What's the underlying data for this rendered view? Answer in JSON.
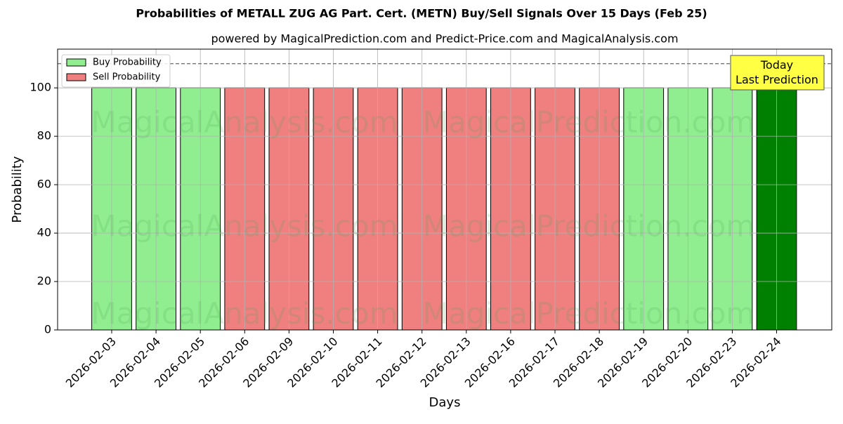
{
  "chart_data": {
    "type": "bar",
    "stacked": true,
    "title": "Probabilities of METALL ZUG AG Part. Cert. (METN) Buy/Sell Signals Over 15 Days (Feb 25)",
    "subtitle": "powered by MagicalPrediction.com and Predict-Price.com and MagicalAnalysis.com",
    "x_label": "Days",
    "y_label": "Probability",
    "categories": [
      "2026-02-03",
      "2026-02-04",
      "2026-02-05",
      "2026-02-06",
      "2026-02-09",
      "2026-02-10",
      "2026-02-11",
      "2026-02-12",
      "2026-02-13",
      "2026-02-16",
      "2026-02-17",
      "2026-02-18",
      "2026-02-19",
      "2026-02-20",
      "2026-02-23",
      "2026-02-24"
    ],
    "series": [
      {
        "name": "Buy Probability",
        "color": "#90ee90",
        "values": [
          100,
          100,
          100,
          0,
          0,
          0,
          0,
          0,
          0,
          0,
          0,
          0,
          100,
          100,
          100,
          100
        ]
      },
      {
        "name": "Sell Probability",
        "color": "#f08080",
        "values": [
          0,
          0,
          0,
          100,
          100,
          100,
          100,
          100,
          100,
          100,
          100,
          100,
          0,
          0,
          0,
          0
        ]
      }
    ],
    "today_color": "#008000",
    "annotation": "Today\nLast Prediction",
    "reference_line": 110,
    "watermarks": [
      "MagicalAnalysis.com",
      "MagicalPrediction.com"
    ],
    "ylim": [
      0,
      116
    ],
    "yticks": [
      0,
      20,
      40,
      60,
      80,
      100
    ],
    "grid": true,
    "legend": "upper left"
  }
}
